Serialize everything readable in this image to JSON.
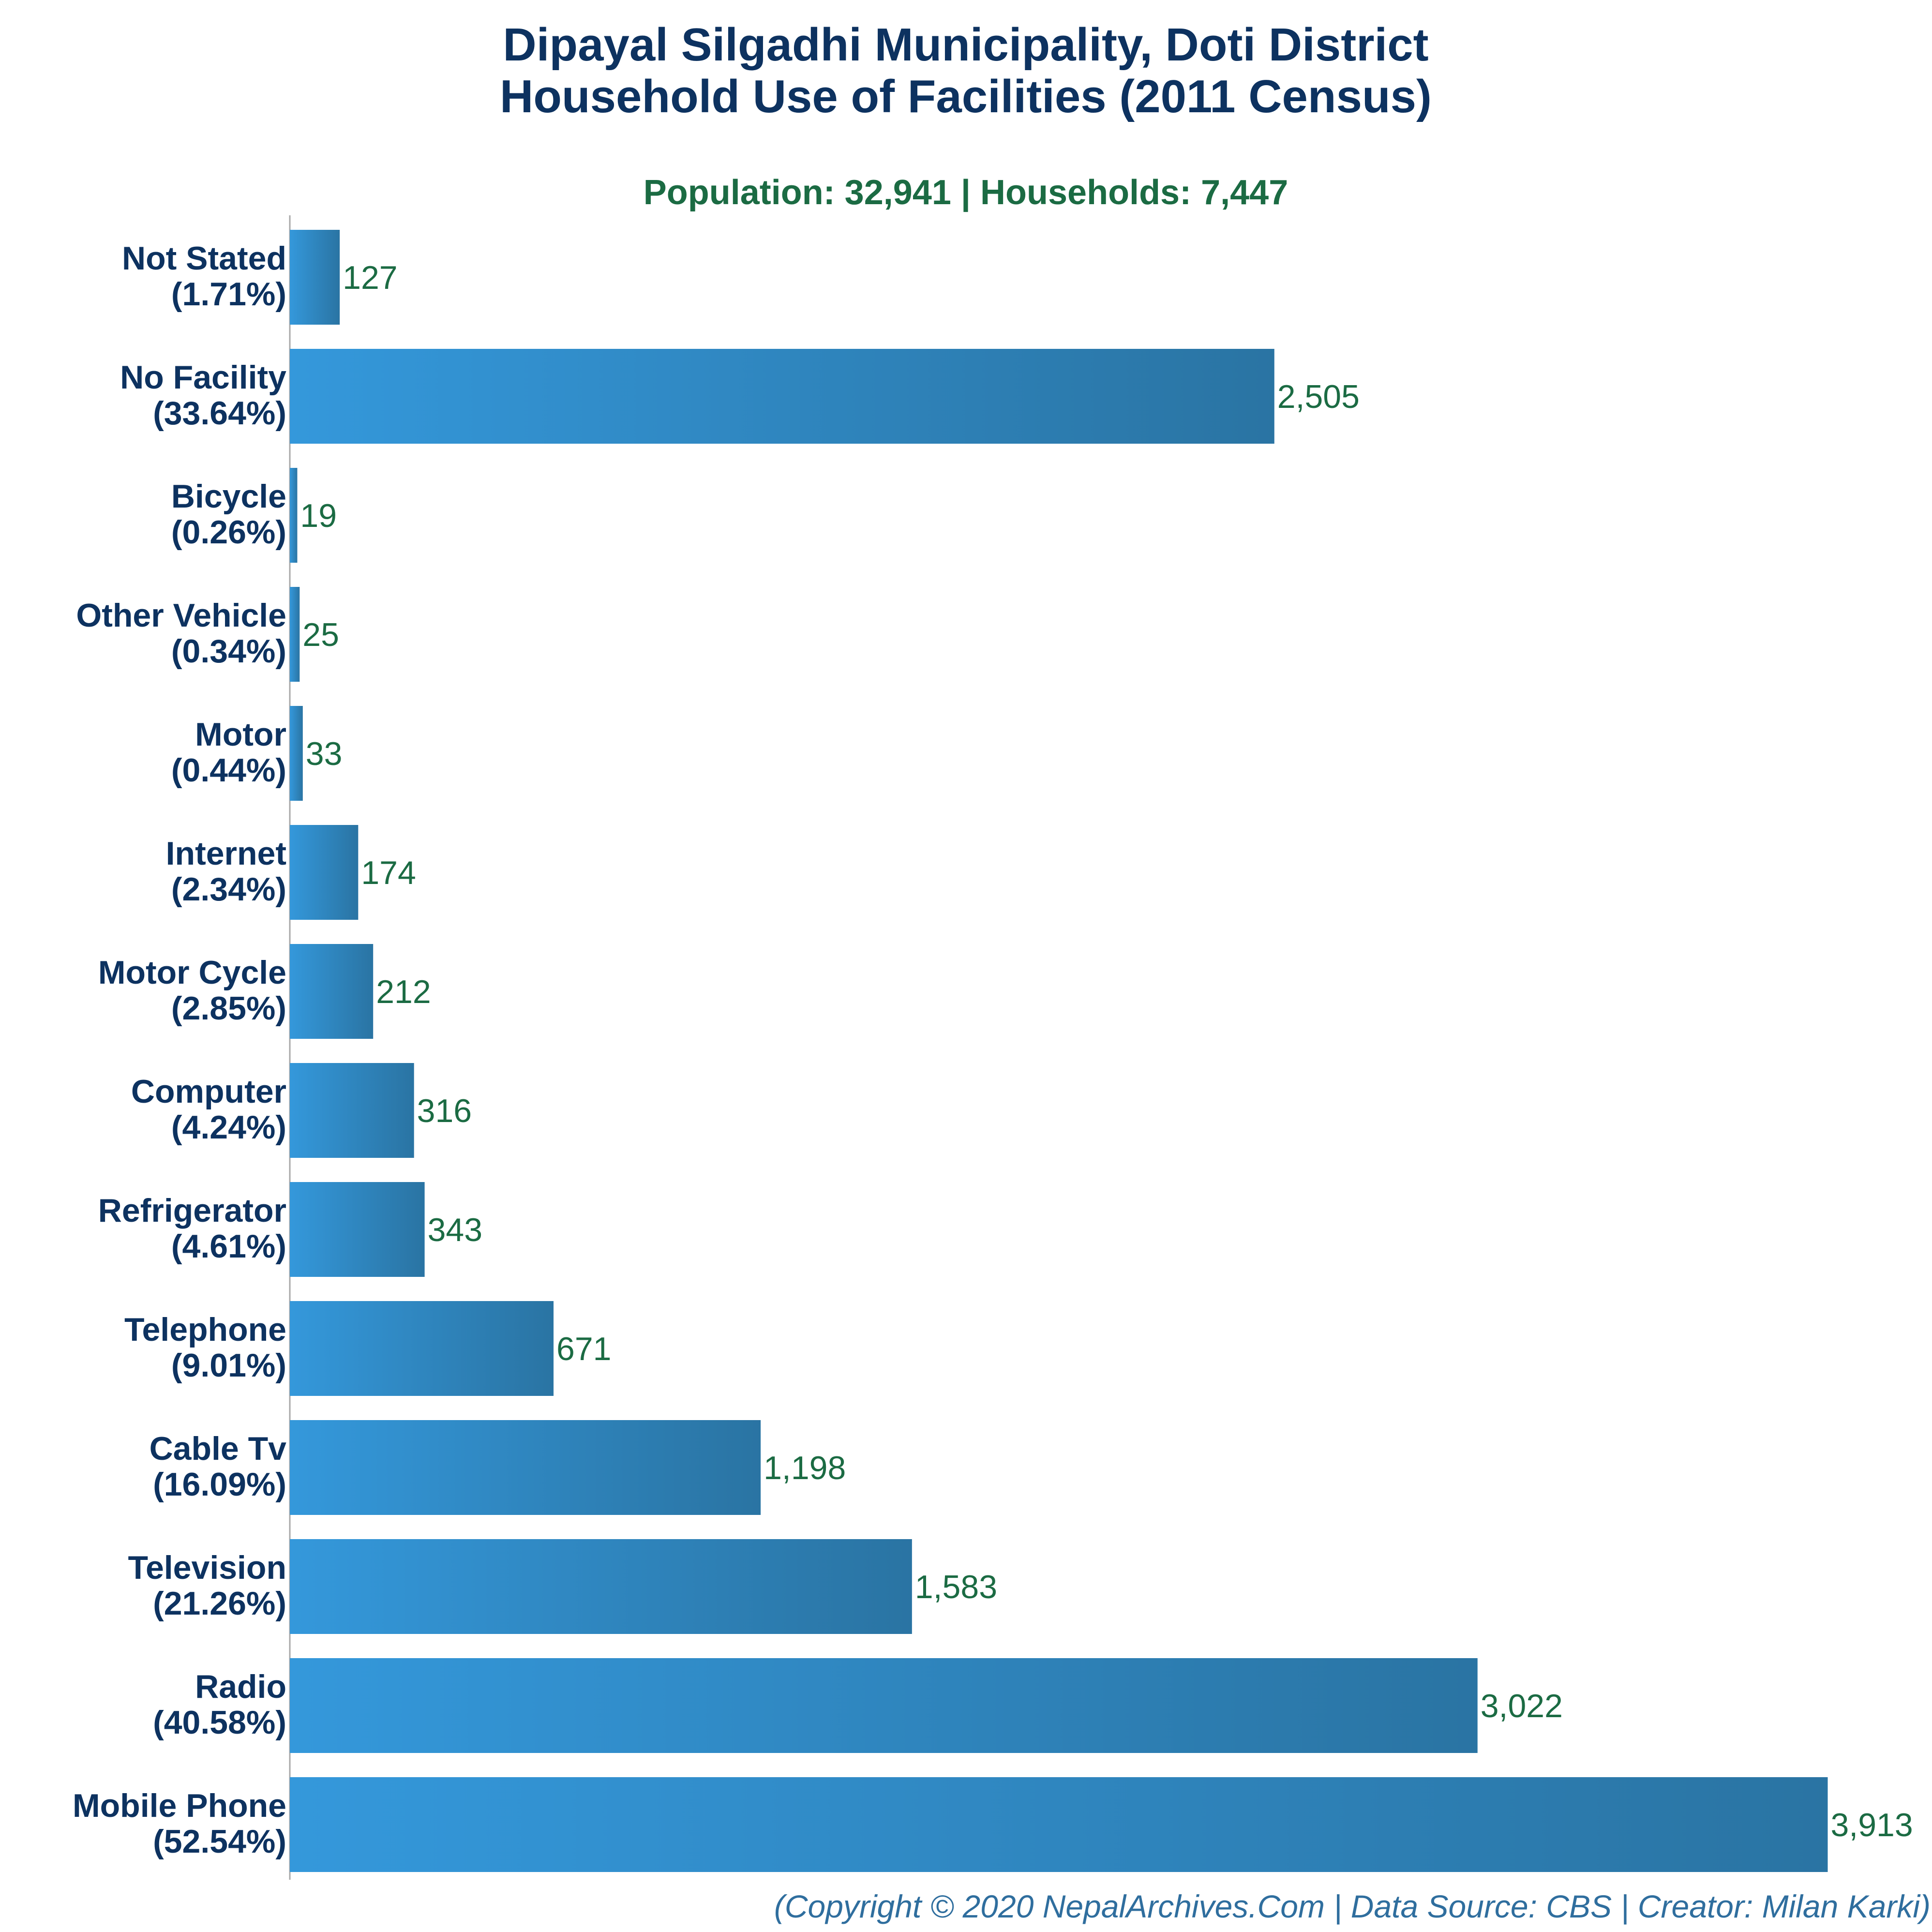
{
  "chart_data": {
    "type": "bar",
    "orientation": "horizontal",
    "title": [
      "Dipayal Silgadhi Municipality, Doti District",
      "Household Use of Facilities (2011 Census)"
    ],
    "subtitle": "Population: 32,941 | Households: 7,447",
    "categories": [
      "Not Stated",
      "No Facility",
      "Bicycle",
      "Other Vehicle",
      "Motor",
      "Internet",
      "Motor Cycle",
      "Computer",
      "Refrigerator",
      "Telephone",
      "Cable Tv",
      "Television",
      "Radio",
      "Mobile Phone"
    ],
    "percent_labels": [
      "(1.71%)",
      "(33.64%)",
      "(0.26%)",
      "(0.34%)",
      "(0.44%)",
      "(2.34%)",
      "(2.85%)",
      "(4.24%)",
      "(4.61%)",
      "(9.01%)",
      "(16.09%)",
      "(21.26%)",
      "(40.58%)",
      "(52.54%)"
    ],
    "values": [
      127,
      2505,
      19,
      25,
      33,
      174,
      212,
      316,
      343,
      671,
      1198,
      1583,
      3022,
      3913
    ],
    "value_labels": [
      "127",
      "2,505",
      "19",
      "25",
      "33",
      "174",
      "212",
      "316",
      "343",
      "671",
      "1,198",
      "1,583",
      "3,022",
      "3,913"
    ],
    "xlim": [
      0,
      4150
    ],
    "grid": false,
    "bar_colors": {
      "start": "#3498db",
      "end": "#2a74a3"
    },
    "footer": "(Copyright © 2020 NepalArchives.Com | Data Source: CBS | Creator: Milan Karki)"
  }
}
